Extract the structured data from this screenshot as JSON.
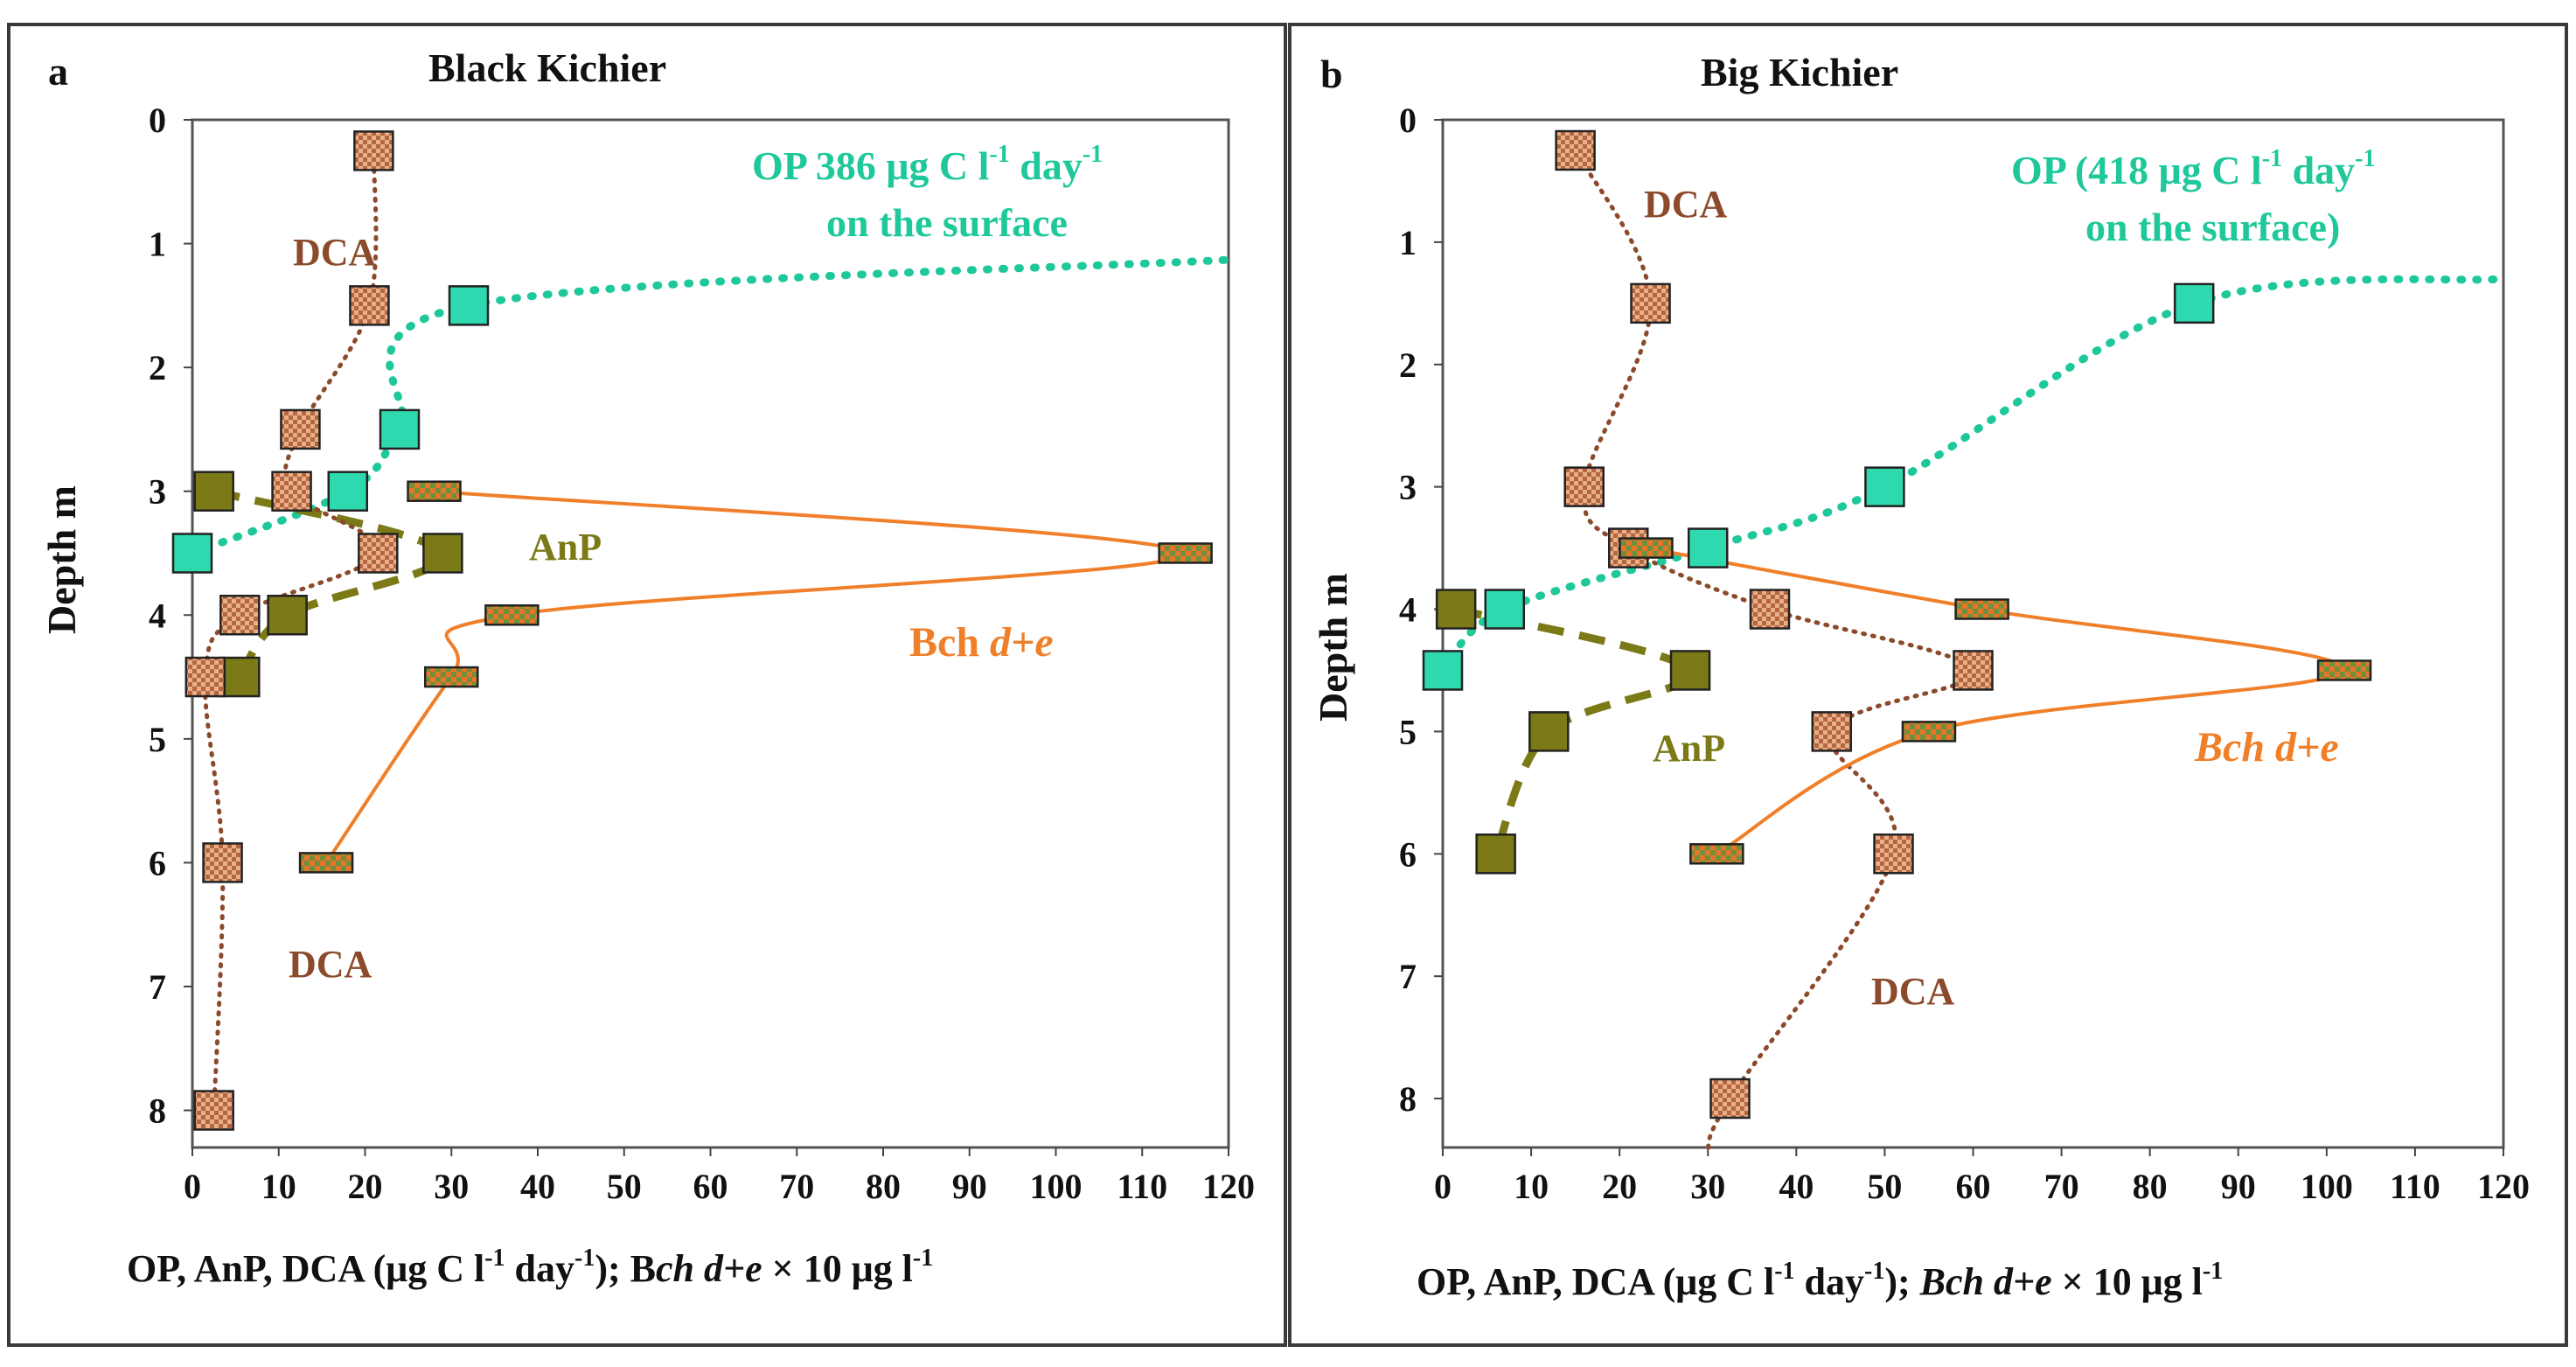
{
  "colors": {
    "op": "#1fc89a",
    "op_marker": "#2fd9b0",
    "anp": "#7b7a17",
    "dca": "#8b4a2b",
    "bch": "#f07f2a",
    "frame": "#3a3a3a",
    "axis": "#444444",
    "text": "#111111"
  },
  "chart_data": [
    {
      "type": "line",
      "panel_letter": "a",
      "title": "Black Kichier",
      "ylabel": "Depth  m",
      "xlabel_parts": [
        "OP, AnP, DCA (μg C l",
        "-1",
        " day",
        "-1",
        "); B",
        "ch d+e",
        " × 10 μg l",
        "-1"
      ],
      "xlim": [
        0,
        120
      ],
      "ylim": [
        0,
        8.3
      ],
      "xticks": [
        "0",
        "10",
        "20",
        "30",
        "40",
        "50",
        "60",
        "70",
        "80",
        "90",
        "100",
        "110",
        "120"
      ],
      "yticks": [
        "0",
        "1",
        "2",
        "3",
        "4",
        "5",
        "6",
        "7",
        "8"
      ],
      "series": [
        {
          "name": "OP",
          "style": "dotted",
          "marker": "square",
          "x": [
            0,
            18,
            24,
            32
          ],
          "y": [
            3.5,
            3.0,
            2.5,
            1.5
          ],
          "curve_extra": [
            [
              120,
              1.13
            ]
          ]
        },
        {
          "name": "AnP",
          "style": "dashed",
          "marker": "square",
          "x": [
            2.5,
            29,
            11,
            5.5
          ],
          "y": [
            3.0,
            3.5,
            4.0,
            4.5
          ]
        },
        {
          "name": "DCA",
          "style": "dotted",
          "marker": "hatched",
          "x": [
            21,
            20.5,
            12.5,
            11.5,
            21.5,
            5.5,
            1.5,
            3.5,
            2.5
          ],
          "y": [
            0.25,
            1.5,
            2.5,
            3.0,
            3.5,
            4.0,
            4.5,
            6.0,
            8.0
          ]
        },
        {
          "name": "Bch d+e",
          "style": "solid",
          "marker": "rect",
          "x": [
            28,
            115,
            37,
            30,
            15.5
          ],
          "y": [
            3.0,
            3.5,
            4.0,
            4.5,
            6.0
          ]
        }
      ],
      "annotations": {
        "op_line1": "OP 386 μg C l",
        "op_sup1": "-1",
        "op_day": " day",
        "op_sup2": "-1",
        "op_line2": "on the surface",
        "anp": "AnP",
        "dca_top": "DCA",
        "dca_bottom": "DCA",
        "bch_prefix": "Bch ",
        "bch_italic": "d+e"
      }
    },
    {
      "type": "line",
      "panel_letter": "b",
      "title": "Big Kichier",
      "ylabel": "Depth  m",
      "xlabel_parts": [
        "OP, AnP, DCA (μg C l",
        "-1",
        " day",
        "-1",
        "); ",
        "Bch d+e",
        " × 10 μg l",
        "-1"
      ],
      "xlim": [
        0,
        120
      ],
      "ylim": [
        0,
        8.4
      ],
      "xticks": [
        "0",
        "10",
        "20",
        "30",
        "40",
        "50",
        "60",
        "70",
        "80",
        "90",
        "100",
        "110",
        "120"
      ],
      "yticks": [
        "0",
        "1",
        "2",
        "3",
        "4",
        "5",
        "6",
        "7",
        "8"
      ],
      "series": [
        {
          "name": "OP",
          "style": "dotted",
          "marker": "square",
          "x": [
            0,
            7,
            30,
            50,
            85
          ],
          "y": [
            4.5,
            4.0,
            3.5,
            3.0,
            1.5
          ],
          "curve_extra": [
            [
              120,
              1.3
            ]
          ]
        },
        {
          "name": "AnP",
          "style": "dashed",
          "marker": "square",
          "x": [
            1.5,
            28,
            12,
            6
          ],
          "y": [
            4.0,
            4.5,
            5.0,
            6.0
          ]
        },
        {
          "name": "DCA",
          "style": "dotted",
          "marker": "hatched",
          "x": [
            15,
            23.5,
            16,
            21,
            37,
            60,
            44,
            51,
            32.5
          ],
          "y": [
            0.25,
            1.5,
            3.0,
            3.5,
            4.0,
            4.5,
            5.0,
            6.0,
            8.0
          ],
          "curve_extra": [
            [
              30,
              8.45
            ]
          ]
        },
        {
          "name": "Bch d+e",
          "style": "solid",
          "marker": "rect",
          "x": [
            23,
            61,
            102,
            55,
            31
          ],
          "y": [
            3.5,
            4.0,
            4.5,
            5.0,
            6.0
          ]
        }
      ],
      "annotations": {
        "op_line1": "OP (418 μg C l",
        "op_sup1": "-1",
        "op_day": " day",
        "op_sup2": "-1",
        "op_line2": "on the surface)",
        "anp": "AnP",
        "dca_top": "DCA",
        "dca_bottom": "DCA",
        "bch_italic": "Bch d+e"
      }
    }
  ]
}
